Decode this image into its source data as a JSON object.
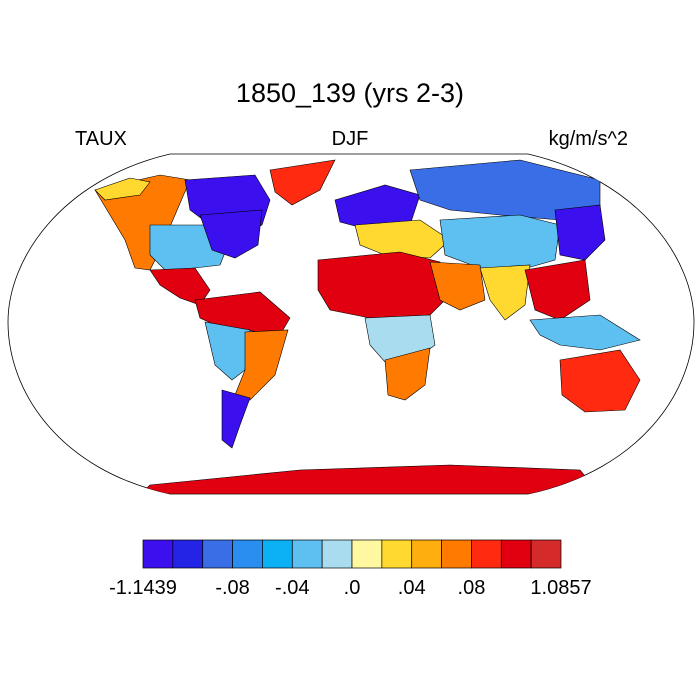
{
  "title": "1850_139 (yrs 2-3)",
  "left_label": "TAUX",
  "center_label": "DJF",
  "right_label": "kg/m/s^2",
  "colorbar": {
    "colors": [
      "#3c10ee",
      "#2424e6",
      "#3a6ee6",
      "#2a8ef0",
      "#0cb0f5",
      "#5ec0f0",
      "#aadcf0",
      "#fff8a0",
      "#ffd830",
      "#ffae10",
      "#ff7a00",
      "#ff2a10",
      "#e00010",
      "#d42a2a"
    ],
    "labels": [
      "-1.1439",
      "-.08",
      "-.04",
      ".0",
      ".04",
      ".08",
      "1.0857"
    ]
  },
  "regions": [
    {
      "name": "canada-north",
      "color": "#3c10ee"
    },
    {
      "name": "north-america-west",
      "color": "#ff7a00"
    },
    {
      "name": "usa-central",
      "color": "#5ec0f0"
    },
    {
      "name": "usa-east",
      "color": "#3c10ee"
    },
    {
      "name": "alaska",
      "color": "#ffd830"
    },
    {
      "name": "greenland",
      "color": "#ff2a10"
    },
    {
      "name": "central-america",
      "color": "#e00010"
    },
    {
      "name": "south-america-north",
      "color": "#e00010"
    },
    {
      "name": "south-america-center",
      "color": "#5ec0f0"
    },
    {
      "name": "south-america-east",
      "color": "#ff7a00"
    },
    {
      "name": "patagonia",
      "color": "#3c10ee"
    },
    {
      "name": "europe-north",
      "color": "#3c10ee"
    },
    {
      "name": "europe-south",
      "color": "#ffd830"
    },
    {
      "name": "siberia",
      "color": "#3a6ee6"
    },
    {
      "name": "central-asia",
      "color": "#5ec0f0"
    },
    {
      "name": "east-asia",
      "color": "#3c10ee"
    },
    {
      "name": "sahara",
      "color": "#e00010"
    },
    {
      "name": "arabia",
      "color": "#ff7a00"
    },
    {
      "name": "africa-central",
      "color": "#aadcf0"
    },
    {
      "name": "africa-south",
      "color": "#ff7a00"
    },
    {
      "name": "india",
      "color": "#ffd830"
    },
    {
      "name": "southeast-asia",
      "color": "#e00010"
    },
    {
      "name": "maritime-continent",
      "color": "#5ec0f0"
    },
    {
      "name": "australia",
      "color": "#ff2a10"
    },
    {
      "name": "antarctica",
      "color": "#e00010"
    }
  ]
}
